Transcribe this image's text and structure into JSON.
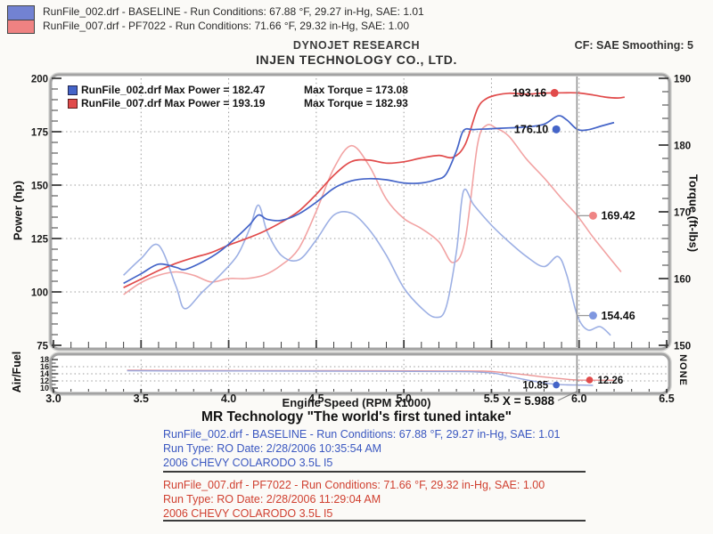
{
  "header": {
    "legend_rows": [
      {
        "swatch_color": "#7282d2",
        "text": "RunFile_002.drf - BASELINE  -  Run Conditions: 67.88 °F, 29.27 in-Hg, SAE: 1.01"
      },
      {
        "swatch_color": "#ef8282",
        "text": "RunFile_007.drf - PF7022  -  Run Conditions: 71.66 °F, 29.32 in-Hg, SAE: 1.00"
      }
    ],
    "brand": "DYNOJET RESEARCH",
    "company": "INJEN TECHNOLOGY CO., LTD.",
    "correction": "CF: SAE  Smoothing: 5"
  },
  "chart_data": {
    "type": "line",
    "x": {
      "label": "Engine Speed (RPM x1000)",
      "min": 3.0,
      "max": 6.5,
      "ticks": [
        3.0,
        3.5,
        4.0,
        4.5,
        5.0,
        5.5,
        6.0,
        6.5
      ],
      "minor_step": 0.1
    },
    "panels": {
      "main": {
        "left_axis": {
          "label": "Power (hp)",
          "min": 75,
          "max": 200,
          "ticks": [
            75,
            100,
            125,
            150,
            175,
            200
          ],
          "minor_step": 5
        },
        "right_axis": {
          "label": "Torque (ft-lbs)",
          "min": 150,
          "max": 190,
          "ticks": [
            150,
            160,
            170,
            180,
            190
          ],
          "minor_step": 2
        },
        "gridlines_left_values": [
          100,
          125,
          150,
          175
        ]
      },
      "af": {
        "left_axis": {
          "label": "Air/Fuel",
          "min": 10,
          "max": 18,
          "ticks": [
            10,
            12,
            14,
            16,
            18
          ],
          "minor_step": 1
        },
        "right_label": "NONE",
        "gridlines": [
          12,
          14,
          16
        ]
      }
    },
    "legend": [
      {
        "swatch": "#4464c8",
        "power": "RunFile_002.drf Max Power = 182.47",
        "torque": "Max Torque = 173.08"
      },
      {
        "swatch": "#e14b4b",
        "power": "RunFile_007.drf Max Power = 193.19",
        "torque": "Max Torque = 182.93"
      }
    ],
    "series": [
      {
        "id": "torque_red",
        "name": "RunFile_007 Torque",
        "panel": "main",
        "axis": "right",
        "color": "#f2a3a3",
        "width": 1.6,
        "points": [
          [
            3.4,
            157.6
          ],
          [
            3.5,
            159.4
          ],
          [
            3.6,
            160.5
          ],
          [
            3.7,
            161.0
          ],
          [
            3.8,
            160.5
          ],
          [
            3.9,
            159.5
          ],
          [
            4.0,
            160.0
          ],
          [
            4.1,
            160.0
          ],
          [
            4.2,
            160.5
          ],
          [
            4.3,
            162.0
          ],
          [
            4.4,
            164.5
          ],
          [
            4.5,
            170.1
          ],
          [
            4.6,
            176.5
          ],
          [
            4.7,
            179.9
          ],
          [
            4.8,
            177.0
          ],
          [
            4.9,
            171.9
          ],
          [
            5.0,
            169.0
          ],
          [
            5.1,
            167.5
          ],
          [
            5.2,
            165.5
          ],
          [
            5.28,
            162.4
          ],
          [
            5.35,
            165.8
          ],
          [
            5.42,
            180.0
          ],
          [
            5.47,
            182.93
          ],
          [
            5.53,
            182.5
          ],
          [
            5.6,
            181.3
          ],
          [
            5.7,
            177.9
          ],
          [
            5.8,
            175.1
          ],
          [
            5.9,
            172.0
          ],
          [
            5.99,
            169.42
          ],
          [
            6.08,
            166.2
          ],
          [
            6.15,
            163.9
          ],
          [
            6.24,
            161.0
          ]
        ]
      },
      {
        "id": "torque_blue",
        "name": "RunFile_002 Torque",
        "panel": "main",
        "axis": "right",
        "color": "#9db0e4",
        "width": 1.6,
        "points": [
          [
            3.4,
            160.5
          ],
          [
            3.5,
            163.0
          ],
          [
            3.6,
            165.0
          ],
          [
            3.7,
            158.8
          ],
          [
            3.75,
            155.5
          ],
          [
            3.85,
            158.0
          ],
          [
            3.95,
            160.5
          ],
          [
            4.05,
            163.5
          ],
          [
            4.12,
            167.5
          ],
          [
            4.17,
            171.0
          ],
          [
            4.22,
            167.0
          ],
          [
            4.3,
            163.5
          ],
          [
            4.4,
            162.8
          ],
          [
            4.5,
            165.8
          ],
          [
            4.6,
            169.5
          ],
          [
            4.7,
            169.8
          ],
          [
            4.8,
            167.4
          ],
          [
            4.9,
            163.5
          ],
          [
            5.0,
            158.6
          ],
          [
            5.1,
            155.6
          ],
          [
            5.18,
            154.2
          ],
          [
            5.24,
            155.6
          ],
          [
            5.3,
            164.0
          ],
          [
            5.34,
            173.08
          ],
          [
            5.4,
            171.0
          ],
          [
            5.5,
            168.0
          ],
          [
            5.6,
            165.5
          ],
          [
            5.7,
            163.3
          ],
          [
            5.8,
            161.8
          ],
          [
            5.88,
            163.3
          ],
          [
            5.93,
            160.5
          ],
          [
            5.99,
            154.46
          ],
          [
            6.05,
            152.3
          ],
          [
            6.12,
            152.8
          ],
          [
            6.18,
            151.5
          ]
        ]
      },
      {
        "id": "power_red",
        "name": "RunFile_007 Power",
        "panel": "main",
        "axis": "left",
        "color": "#e14b4b",
        "width": 1.7,
        "points": [
          [
            3.4,
            102.0
          ],
          [
            3.5,
            106.0
          ],
          [
            3.6,
            110.0
          ],
          [
            3.7,
            113.4
          ],
          [
            3.8,
            116.1
          ],
          [
            3.9,
            118.4
          ],
          [
            4.0,
            121.9
          ],
          [
            4.1,
            124.9
          ],
          [
            4.2,
            128.3
          ],
          [
            4.3,
            132.6
          ],
          [
            4.4,
            137.8
          ],
          [
            4.5,
            145.7
          ],
          [
            4.6,
            154.6
          ],
          [
            4.7,
            161.0
          ],
          [
            4.8,
            161.7
          ],
          [
            4.9,
            160.3
          ],
          [
            5.0,
            160.9
          ],
          [
            5.1,
            162.7
          ],
          [
            5.2,
            163.9
          ],
          [
            5.28,
            163.0
          ],
          [
            5.35,
            169.0
          ],
          [
            5.42,
            185.7
          ],
          [
            5.47,
            190.4
          ],
          [
            5.53,
            192.2
          ],
          [
            5.6,
            193.0
          ],
          [
            5.7,
            192.6
          ],
          [
            5.8,
            193.1
          ],
          [
            5.9,
            193.2
          ],
          [
            5.99,
            193.16
          ],
          [
            6.08,
            192.2
          ],
          [
            6.15,
            191.2
          ],
          [
            6.22,
            190.8
          ],
          [
            6.26,
            191.2
          ]
        ]
      },
      {
        "id": "power_blue",
        "name": "RunFile_002 Power",
        "panel": "main",
        "axis": "left",
        "color": "#4464c8",
        "width": 1.7,
        "points": [
          [
            3.4,
            104.0
          ],
          [
            3.5,
            108.5
          ],
          [
            3.6,
            113.0
          ],
          [
            3.7,
            111.5
          ],
          [
            3.75,
            110.5
          ],
          [
            3.85,
            114.0
          ],
          [
            3.95,
            119.0
          ],
          [
            4.05,
            126.0
          ],
          [
            4.12,
            131.5
          ],
          [
            4.17,
            136.0
          ],
          [
            4.22,
            134.0
          ],
          [
            4.3,
            133.5
          ],
          [
            4.4,
            136.5
          ],
          [
            4.5,
            142.0
          ],
          [
            4.6,
            148.5
          ],
          [
            4.7,
            152.0
          ],
          [
            4.8,
            153.0
          ],
          [
            4.9,
            152.5
          ],
          [
            5.0,
            151.0
          ],
          [
            5.1,
            151.0
          ],
          [
            5.18,
            152.5
          ],
          [
            5.24,
            155.0
          ],
          [
            5.3,
            166.0
          ],
          [
            5.34,
            175.5
          ],
          [
            5.4,
            176.0
          ],
          [
            5.5,
            176.4
          ],
          [
            5.6,
            176.8
          ],
          [
            5.7,
            177.2
          ],
          [
            5.8,
            178.5
          ],
          [
            5.88,
            182.4
          ],
          [
            5.93,
            180.5
          ],
          [
            5.99,
            176.1
          ],
          [
            6.05,
            175.9
          ],
          [
            6.12,
            177.5
          ],
          [
            6.2,
            179.3
          ]
        ]
      },
      {
        "id": "af_red",
        "name": "RunFile_007 Air/Fuel",
        "panel": "af",
        "axis": "left",
        "color": "#eb9494",
        "width": 1.4,
        "points": [
          [
            3.42,
            15.0
          ],
          [
            3.7,
            14.95
          ],
          [
            4.1,
            14.9
          ],
          [
            4.5,
            14.9
          ],
          [
            4.9,
            14.85
          ],
          [
            5.2,
            14.8
          ],
          [
            5.45,
            14.75
          ],
          [
            5.58,
            14.3
          ],
          [
            5.7,
            13.7
          ],
          [
            5.8,
            13.1
          ],
          [
            5.9,
            12.6
          ],
          [
            5.99,
            12.26
          ],
          [
            6.1,
            12.2
          ],
          [
            6.2,
            12.2
          ]
        ]
      },
      {
        "id": "af_blue",
        "name": "RunFile_002 Air/Fuel",
        "panel": "af",
        "axis": "left",
        "color": "#97a6dd",
        "width": 1.4,
        "points": [
          [
            3.42,
            14.85
          ],
          [
            3.7,
            14.8
          ],
          [
            4.1,
            14.8
          ],
          [
            4.5,
            14.75
          ],
          [
            4.9,
            14.7
          ],
          [
            5.2,
            14.65
          ],
          [
            5.4,
            14.55
          ],
          [
            5.52,
            14.1
          ],
          [
            5.62,
            13.1
          ],
          [
            5.72,
            12.1
          ],
          [
            5.82,
            11.3
          ],
          [
            5.9,
            10.95
          ],
          [
            5.99,
            10.85
          ],
          [
            6.08,
            10.75
          ]
        ]
      }
    ],
    "cursor": {
      "x": 5.988,
      "label": "X = 5.988"
    },
    "markers": [
      {
        "panel": "main",
        "axis": "right",
        "x": 6.08,
        "value": 169.42,
        "label": "169.42",
        "color": "#ef8585",
        "side": "right",
        "leader": true
      },
      {
        "panel": "main",
        "axis": "right",
        "x": 6.08,
        "value": 154.46,
        "label": "154.46",
        "color": "#7f97e0",
        "side": "right",
        "leader": true
      },
      {
        "panel": "main",
        "axis": "left",
        "x": 5.86,
        "value": 193.16,
        "label": "193.16",
        "color": "#e14b4b",
        "side": "left",
        "leader": false
      },
      {
        "panel": "main",
        "axis": "left",
        "x": 5.87,
        "value": 176.1,
        "label": "176.10",
        "color": "#4464c8",
        "side": "left",
        "leader": false
      },
      {
        "panel": "af",
        "axis": "left",
        "x": 5.87,
        "value": 10.85,
        "label": "10.85",
        "color": "#4464c8",
        "side": "left",
        "leader": false
      },
      {
        "panel": "af",
        "axis": "left",
        "x": 6.06,
        "value": 12.26,
        "label": "12.26",
        "color": "#e14b4b",
        "side": "right",
        "leader": false
      }
    ]
  },
  "footer": {
    "title": "MR Technology \"The world's first tuned intake\"",
    "runs": [
      {
        "color": "#3a57c0",
        "line1": "RunFile_002.drf - BASELINE  -  Run Conditions: 67.88 °F, 29.27 in-Hg, SAE: 1.01",
        "line2": "Run Type: RO  Date: 2/28/2006 10:35:54 AM",
        "line3": "2006 CHEVY COLARODO 3.5L I5"
      },
      {
        "color": "#d04030",
        "line1": "RunFile_007.drf - PF7022  -  Run Conditions: 71.66 °F, 29.32 in-Hg, SAE: 1.00",
        "line2": "Run Type: RO  Date: 2/28/2006 11:29:04 AM",
        "line3": "2006 CHEVY COLARODO 3.5L I5"
      }
    ]
  }
}
